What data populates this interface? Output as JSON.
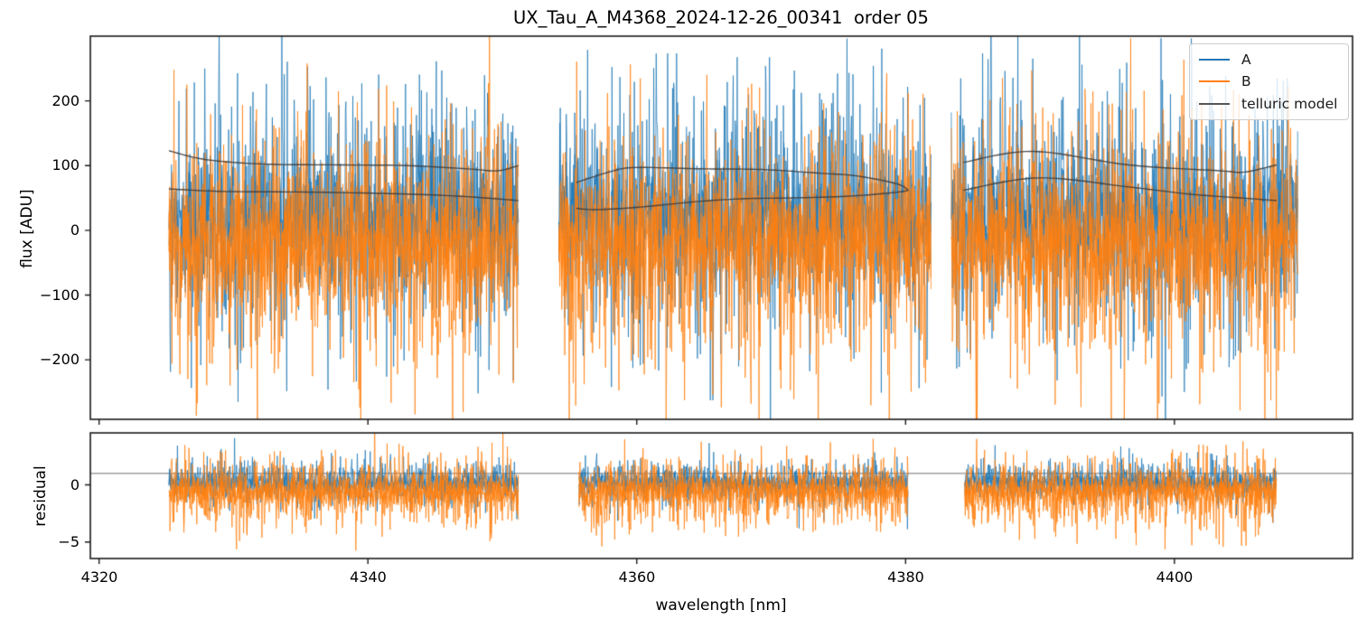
{
  "chart_data": {
    "type": "line",
    "title": "UX_Tau_A_M4368_2024-12-26_00341  order 05",
    "xlabel": "wavelength [nm]",
    "xlim": [
      4319.35,
      4413.25
    ],
    "xticks": [
      {
        "value": 4320,
        "label": "4320"
      },
      {
        "value": 4340,
        "label": "4340"
      },
      {
        "value": 4360,
        "label": "4360"
      },
      {
        "value": 4380,
        "label": "4380"
      },
      {
        "value": 4400,
        "label": "4400"
      }
    ],
    "grid": false,
    "noise_seed": 20241226,
    "top_panel": {
      "ylabel": "flux [ADU]",
      "ylim": [
        -292,
        300
      ],
      "yticks": [
        {
          "value": 200,
          "label": "200"
        },
        {
          "value": 100,
          "label": "100"
        },
        {
          "value": 0,
          "label": "0"
        },
        {
          "value": -100,
          "label": "−100"
        },
        {
          "value": -200,
          "label": "−200"
        }
      ],
      "data_segments_nm": [
        [
          4325.2,
          4351.2
        ],
        [
          4354.2,
          4381.9
        ],
        [
          4383.4,
          4409.2
        ]
      ],
      "series": [
        {
          "name": "A",
          "color": "#1f77b4",
          "mean_adu": 20,
          "sigma_adu": 105
        },
        {
          "name": "B",
          "color": "#ff7f0e",
          "mean_adu": -22,
          "sigma_adu": 106
        }
      ],
      "telluric_model": {
        "name": "telluric model",
        "color": "#3d3d3d",
        "segments": [
          {
            "upper": [
              [
                4325.2,
                123
              ],
              [
                4327.2,
                112
              ],
              [
                4329.4,
                106
              ],
              [
                4332.8,
                102
              ],
              [
                4338.4,
                101
              ],
              [
                4342.9,
                100
              ],
              [
                4347.4,
                95
              ],
              [
                4349.6,
                92
              ],
              [
                4351.2,
                100
              ]
            ],
            "lower": [
              [
                4325.2,
                64
              ],
              [
                4329.4,
                60
              ],
              [
                4336.0,
                59
              ],
              [
                4342.9,
                56
              ],
              [
                4347.4,
                52
              ],
              [
                4351.2,
                46
              ]
            ]
          },
          {
            "upper": [
              [
                4355.5,
                74
              ],
              [
                4358.1,
                91
              ],
              [
                4359.9,
                97
              ],
              [
                4364.8,
                95
              ],
              [
                4369.3,
                94
              ],
              [
                4373.8,
                88
              ],
              [
                4376.0,
                85
              ],
              [
                4378.3,
                77
              ],
              [
                4379.6,
                70
              ],
              [
                4380.2,
                62
              ]
            ],
            "lower": [
              [
                4355.5,
                34
              ],
              [
                4357.0,
                32
              ],
              [
                4360.3,
                36
              ],
              [
                4364.8,
                45
              ],
              [
                4368.2,
                49
              ],
              [
                4371.6,
                50
              ],
              [
                4376.0,
                53
              ],
              [
                4379.4,
                59
              ],
              [
                4380.2,
                62
              ]
            ]
          },
          {
            "upper": [
              [
                4384.3,
                105
              ],
              [
                4389.5,
                122
              ],
              [
                4396.6,
                101
              ],
              [
                4403.4,
                92
              ],
              [
                4405.2,
                90
              ],
              [
                4407.6,
                101
              ]
            ],
            "lower": [
              [
                4384.3,
                62
              ],
              [
                4389.9,
                81
              ],
              [
                4396.6,
                67
              ],
              [
                4401.1,
                56
              ],
              [
                4405.6,
                49
              ],
              [
                4407.6,
                46
              ]
            ]
          }
        ]
      }
    },
    "bottom_panel": {
      "ylabel": "residual",
      "ylim": [
        -6.45,
        4.55
      ],
      "yticks": [
        {
          "value": 0,
          "label": "0"
        },
        {
          "value": -5,
          "label": "−5"
        }
      ],
      "reference_line": {
        "y": 1,
        "color": "#6e6e6e"
      },
      "data_segments_nm": [
        [
          4325.2,
          4351.2
        ],
        [
          4355.7,
          4380.2
        ],
        [
          4384.4,
          4407.6
        ]
      ],
      "series": [
        {
          "name": "A",
          "color": "#1f77b4",
          "mean": 0.2,
          "sigma": 1.05,
          "spike_rate": 0.004,
          "spike_extra_max": 2.0
        },
        {
          "name": "B",
          "color": "#ff7f0e",
          "mean": -0.55,
          "sigma": 1.65,
          "spike_rate": 0.03,
          "spike_extra_max": 3.0
        }
      ]
    },
    "legend": {
      "location": "upper right",
      "entries": [
        {
          "label": "A",
          "color": "#1f77b4"
        },
        {
          "label": "B",
          "color": "#ff7f0e"
        },
        {
          "label": "telluric model",
          "color": "#555555"
        }
      ]
    }
  }
}
